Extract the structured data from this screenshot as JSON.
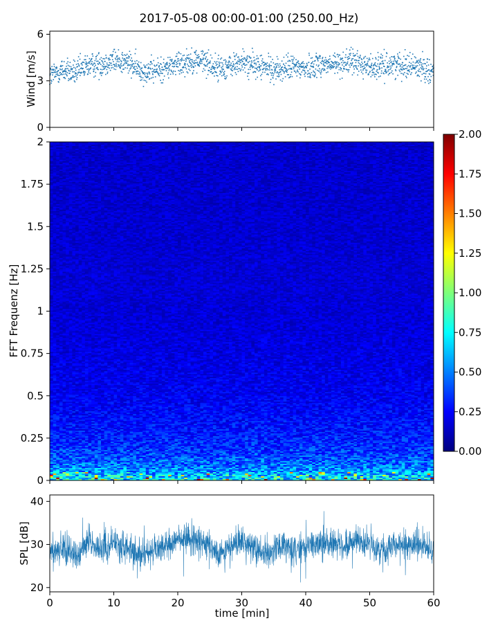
{
  "chart_data": [
    {
      "type": "scatter",
      "title": "2017-05-08 00:00-01:00 (250.00_Hz)",
      "ylabel": "Wind [m/s]",
      "xlim": [
        0,
        60
      ],
      "ylim": [
        0,
        6.2
      ],
      "yticks": [
        "0",
        "3",
        "6"
      ],
      "ytick_values": [
        0,
        3,
        6
      ],
      "marker_color": "#1f77b4",
      "series": [
        {
          "x": [
            0,
            2,
            4,
            6,
            8,
            10,
            12,
            14,
            16,
            18,
            20,
            22,
            24,
            26,
            28,
            30,
            32,
            34,
            36,
            38,
            40,
            42,
            44,
            46,
            48,
            50,
            52,
            54,
            56,
            58,
            60
          ],
          "values": [
            3.3,
            3.7,
            3.5,
            4.0,
            4.1,
            4.3,
            4.2,
            3.7,
            3.6,
            3.8,
            4.1,
            4.3,
            4.3,
            3.8,
            3.9,
            4.2,
            4.0,
            3.8,
            3.7,
            3.9,
            3.8,
            4.1,
            4.0,
            4.2,
            4.2,
            3.9,
            3.9,
            4.1,
            4.0,
            3.9,
            3.6
          ]
        }
      ]
    },
    {
      "type": "heatmap",
      "ylabel": "FFT Frequenz [Hz]",
      "xlim": [
        0,
        60
      ],
      "ylim": [
        0,
        2
      ],
      "yticks": [
        "0",
        "0.25",
        "0.5",
        "0.75",
        "1",
        "1.25",
        "1.5",
        "1.75",
        "2"
      ],
      "ytick_values": [
        0,
        0.25,
        0.5,
        0.75,
        1,
        1.25,
        1.5,
        1.75,
        2
      ],
      "colormap": "jet",
      "colorbar": {
        "range": [
          0,
          2
        ],
        "ticks": [
          "0.00",
          "0.25",
          "0.50",
          "0.75",
          "1.00",
          "1.25",
          "1.50",
          "1.75",
          "2.00"
        ],
        "tick_values": [
          0,
          0.25,
          0.5,
          0.75,
          1,
          1.25,
          1.5,
          1.75,
          2
        ]
      },
      "frequency_profile": {
        "freq": [
          0,
          0.05,
          0.1,
          0.15,
          0.25,
          0.5,
          1.0,
          1.5,
          2.0
        ],
        "mean_value": [
          0.75,
          0.55,
          0.45,
          0.38,
          0.3,
          0.22,
          0.17,
          0.16,
          0.15
        ]
      }
    },
    {
      "type": "line",
      "ylabel": "SPL [dB]",
      "xlabel": "time [min]",
      "xlim": [
        0,
        60
      ],
      "ylim": [
        19,
        41.5
      ],
      "xticks": [
        "0",
        "10",
        "20",
        "30",
        "40",
        "50",
        "60"
      ],
      "xtick_values": [
        0,
        10,
        20,
        30,
        40,
        50,
        60
      ],
      "yticks": [
        "20",
        "30",
        "40"
      ],
      "ytick_values": [
        20,
        30,
        40
      ],
      "line_color": "#1f77b4",
      "series": [
        {
          "x": [
            0,
            2,
            4,
            6,
            8,
            10,
            12,
            14,
            16,
            18,
            20,
            22,
            24,
            26,
            28,
            30,
            32,
            34,
            36,
            38,
            40,
            42,
            44,
            46,
            48,
            50,
            52,
            54,
            56,
            58,
            60
          ],
          "values": [
            28.5,
            29,
            28,
            30,
            29,
            30.5,
            29,
            27.5,
            28.5,
            30,
            31,
            31.5,
            30.5,
            28,
            28.5,
            30.5,
            29,
            28,
            29.5,
            28.5,
            29,
            30.5,
            30,
            29.5,
            31,
            30,
            28.5,
            30,
            29.5,
            30,
            28.5
          ]
        }
      ]
    }
  ]
}
